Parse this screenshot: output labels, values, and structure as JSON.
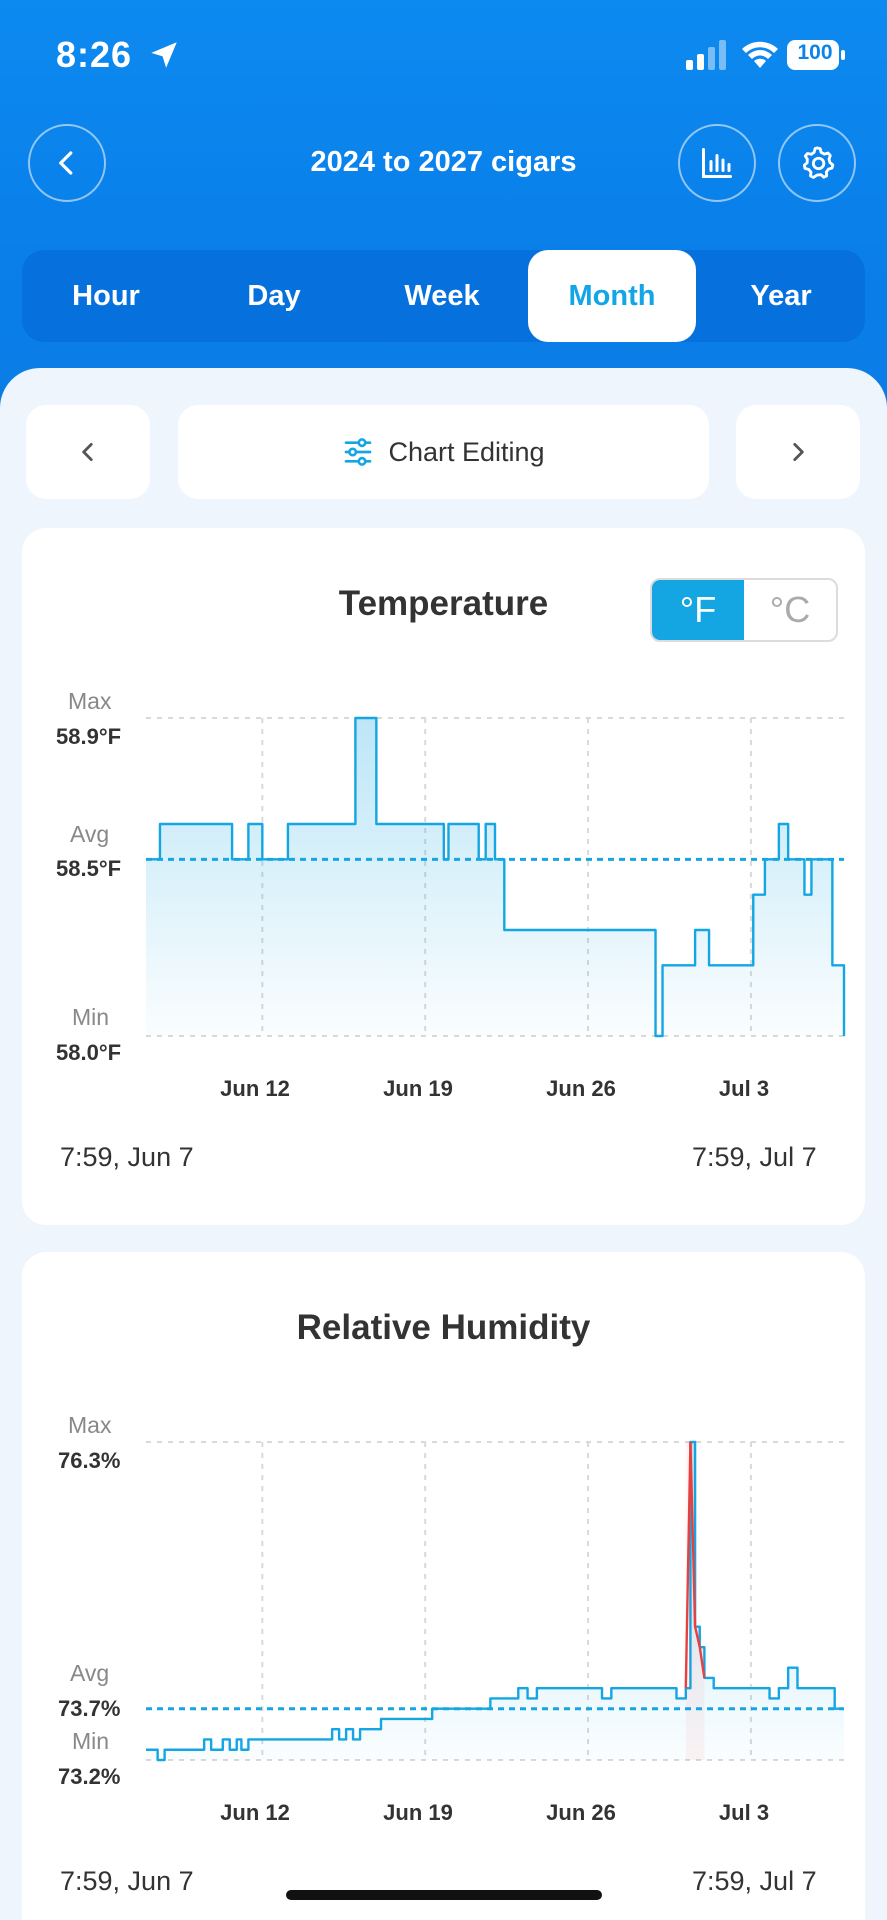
{
  "status_bar": {
    "time": "8:26",
    "battery": "100"
  },
  "nav": {
    "title": "2024 to 2027 cigars"
  },
  "tabs": [
    {
      "label": "Hour",
      "active": false
    },
    {
      "label": "Day",
      "active": false
    },
    {
      "label": "Week",
      "active": false
    },
    {
      "label": "Month",
      "active": true
    },
    {
      "label": "Year",
      "active": false
    }
  ],
  "toolbar": {
    "chart_editing_label": "Chart Editing"
  },
  "colors": {
    "accent": "#14a6e3",
    "header": "#0a84ea",
    "alert": "#e8403f"
  },
  "temperature": {
    "title": "Temperature",
    "unit_f": "°F",
    "unit_c": "°C",
    "max_label": "Max",
    "max_value": "58.9°F",
    "avg_label": "Avg",
    "avg_value": "58.5°F",
    "min_label": "Min",
    "min_value": "58.0°F",
    "ticks": [
      "Jun 12",
      "Jun 19",
      "Jun 26",
      "Jul 3"
    ],
    "range_start": "7:59,  Jun 7",
    "range_end": "7:59,  Jul 7"
  },
  "humidity": {
    "title": "Relative Humidity",
    "max_label": "Max",
    "max_value": "76.3%",
    "avg_label": "Avg",
    "avg_value": "73.7%",
    "min_label": "Min",
    "min_value": "73.2%",
    "ticks": [
      "Jun 12",
      "Jun 19",
      "Jun 26",
      "Jul 3"
    ],
    "range_start": "7:59,  Jun 7",
    "range_end": "7:59,  Jul 7"
  },
  "chart_data": [
    {
      "type": "line",
      "title": "Temperature",
      "ylim": [
        58.0,
        58.9
      ],
      "avg": 58.5,
      "x_range": [
        "Jun 7",
        "Jul 7"
      ],
      "x_unit": "days since Jun 7",
      "series": [
        {
          "x": [
            0,
            0.4,
            0.6,
            1.2,
            1.5,
            1.8,
            2.2,
            2.9,
            3.2,
            3.5,
            3.7,
            3.9,
            4.3,
            4.4,
            4.6,
            4.9,
            5.0,
            5.2,
            5.5,
            6.1,
            6.4,
            6.8,
            7.1,
            7.5,
            8.3,
            8.5,
            8.9,
            9.0,
            9.3,
            9.7,
            9.9,
            10.2,
            10.4,
            10.6,
            10.8,
            11.1,
            11.3,
            11.6,
            11.8,
            12.0,
            12.2,
            12.4,
            12.6,
            12.8,
            13.0,
            13.2,
            13.7,
            13.9,
            14.1,
            14.3,
            14.6,
            14.7,
            15.0,
            15.2,
            15.4,
            15.6,
            15.7,
            15.9,
            16.3,
            17.1,
            17.4,
            18.2,
            19.0,
            19.8,
            20.6,
            20.8,
            20.9,
            21.1,
            21.3,
            21.9,
            22.2,
            22.4,
            22.6,
            23.3,
            23.6,
            23.8,
            24.2,
            24.6,
            24.7,
            24.9,
            25.2,
            25.5,
            25.8,
            25.9,
            26.1,
            26.4,
            26.6,
            27.0,
            27.2,
            27.6,
            27.8,
            28.1,
            28.3,
            28.6,
            28.8,
            29.0,
            29.2,
            29.5,
            29.8,
            30.0
          ],
          "y": [
            58.5,
            58.5,
            58.6,
            58.6,
            58.6,
            58.6,
            58.6,
            58.6,
            58.6,
            58.6,
            58.5,
            58.5,
            58.5,
            58.6,
            58.6,
            58.6,
            58.5,
            58.5,
            58.5,
            58.6,
            58.6,
            58.6,
            58.6,
            58.6,
            58.6,
            58.6,
            58.6,
            58.9,
            58.9,
            58.9,
            58.6,
            58.6,
            58.6,
            58.6,
            58.6,
            58.6,
            58.6,
            58.6,
            58.6,
            58.6,
            58.6,
            58.6,
            58.6,
            58.5,
            58.6,
            58.6,
            58.6,
            58.6,
            58.6,
            58.5,
            58.6,
            58.6,
            58.5,
            58.5,
            58.3,
            58.3,
            58.3,
            58.3,
            58.3,
            58.3,
            58.3,
            58.3,
            58.3,
            58.3,
            58.3,
            58.3,
            58.3,
            58.3,
            58.3,
            58.0,
            58.2,
            58.2,
            58.2,
            58.2,
            58.3,
            58.3,
            58.2,
            58.2,
            58.2,
            58.2,
            58.2,
            58.2,
            58.2,
            58.2,
            58.4,
            58.4,
            58.5,
            58.5,
            58.6,
            58.5,
            58.5,
            58.5,
            58.4,
            58.5,
            58.5,
            58.5,
            58.5,
            58.2,
            58.2,
            58.0
          ]
        }
      ]
    },
    {
      "type": "line",
      "title": "Relative Humidity",
      "ylim": [
        73.2,
        76.3
      ],
      "avg": 73.7,
      "x_range": [
        "Jun 7",
        "Jul 7"
      ],
      "x_unit": "days since Jun 7",
      "alert_threshold": 74.1,
      "series": [
        {
          "x": [
            0,
            0.3,
            0.5,
            0.8,
            1.1,
            1.4,
            1.6,
            1.9,
            2.2,
            2.5,
            2.8,
            3.1,
            3.3,
            3.6,
            3.9,
            4.1,
            4.4,
            4.7,
            5.0,
            5.3,
            5.6,
            5.9,
            6.2,
            6.5,
            6.8,
            7.1,
            7.4,
            7.7,
            8.0,
            8.3,
            8.6,
            8.9,
            9.2,
            9.5,
            9.8,
            10.1,
            10.5,
            10.8,
            11.1,
            11.4,
            11.7,
            12.0,
            12.3,
            12.6,
            12.9,
            13.2,
            13.6,
            14.0,
            14.4,
            14.8,
            15.2,
            15.6,
            16.0,
            16.4,
            16.8,
            17.2,
            17.6,
            18.0,
            18.4,
            18.8,
            19.2,
            19.6,
            20.0,
            20.4,
            20.8,
            21.2,
            21.6,
            22.0,
            22.4,
            22.8,
            23.2,
            23.4,
            23.6,
            23.8,
            24.0,
            24.4,
            24.8,
            25.2,
            25.6,
            26.0,
            26.4,
            26.8,
            27.2,
            27.6,
            28.0,
            28.4,
            28.8,
            29.2,
            29.6,
            30.0
          ],
          "y": [
            73.3,
            73.3,
            73.2,
            73.3,
            73.3,
            73.3,
            73.3,
            73.3,
            73.3,
            73.4,
            73.3,
            73.3,
            73.4,
            73.3,
            73.4,
            73.3,
            73.4,
            73.4,
            73.4,
            73.4,
            73.4,
            73.4,
            73.4,
            73.4,
            73.4,
            73.4,
            73.4,
            73.4,
            73.5,
            73.4,
            73.5,
            73.4,
            73.5,
            73.5,
            73.5,
            73.6,
            73.6,
            73.6,
            73.6,
            73.6,
            73.6,
            73.6,
            73.7,
            73.7,
            73.7,
            73.7,
            73.7,
            73.7,
            73.7,
            73.8,
            73.8,
            73.8,
            73.9,
            73.8,
            73.9,
            73.9,
            73.9,
            73.9,
            73.9,
            73.9,
            73.9,
            73.8,
            73.9,
            73.9,
            73.9,
            73.9,
            73.9,
            73.9,
            73.9,
            73.8,
            73.9,
            76.3,
            74.5,
            74.3,
            74.0,
            73.9,
            73.9,
            73.9,
            73.9,
            73.9,
            73.9,
            73.8,
            73.9,
            74.1,
            73.9,
            73.9,
            73.9,
            73.9,
            73.7,
            73.7
          ]
        }
      ]
    }
  ]
}
